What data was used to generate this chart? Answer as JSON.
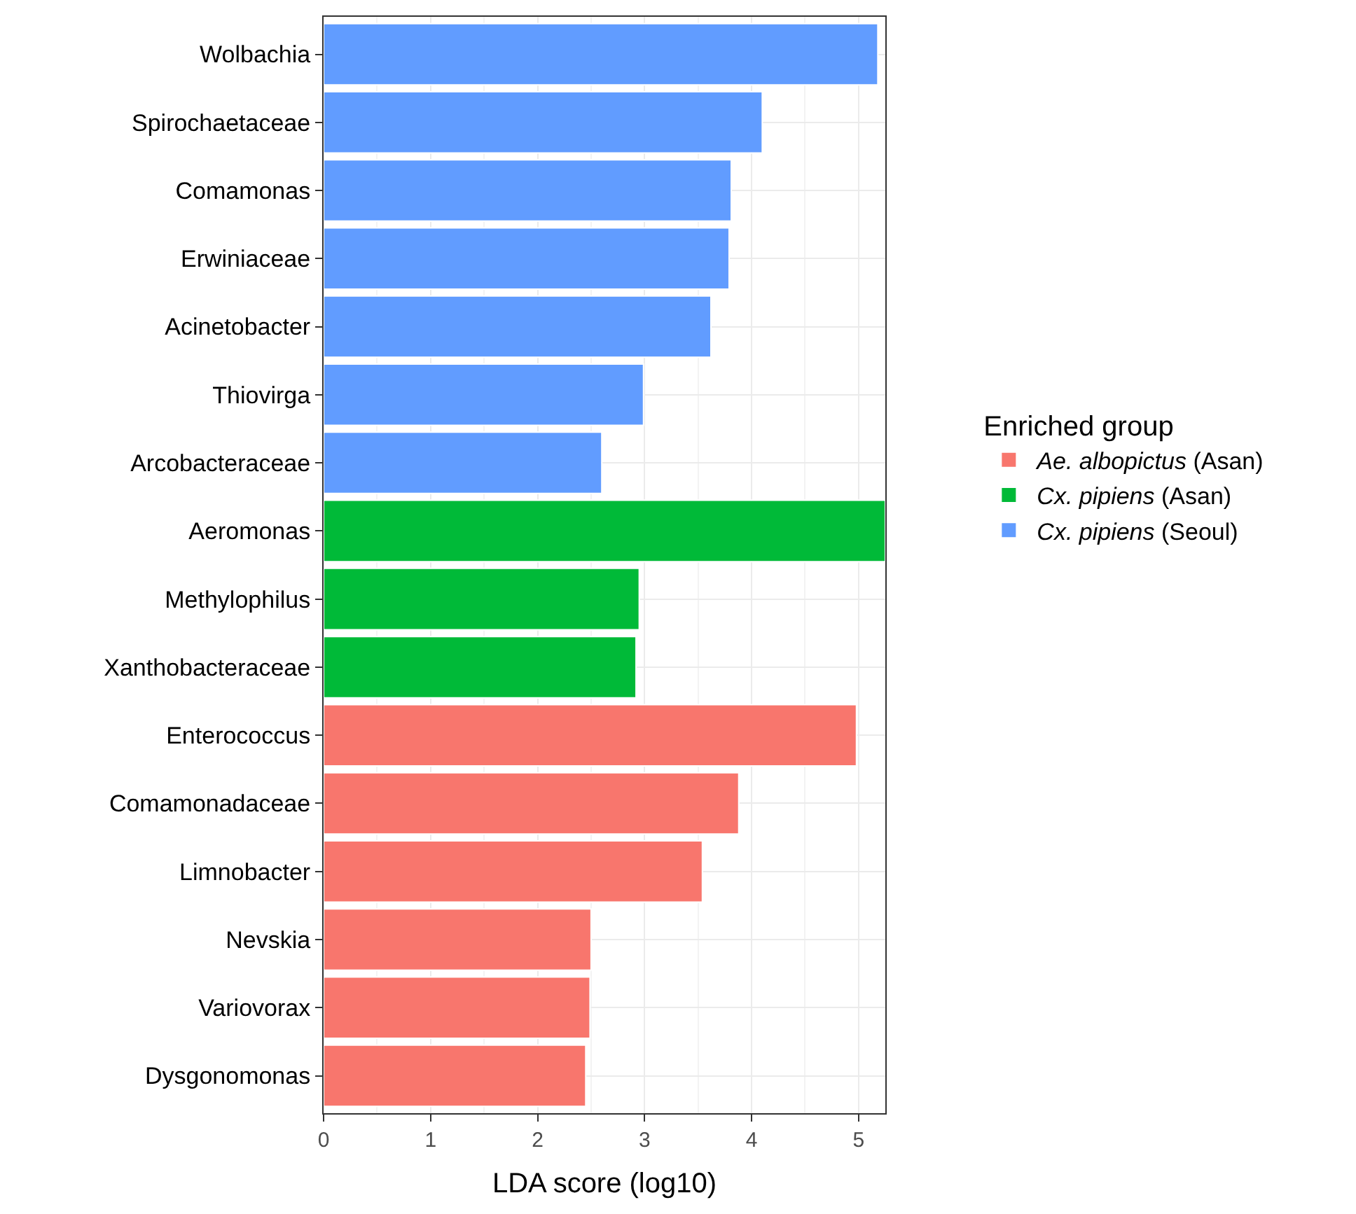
{
  "chart_data": {
    "type": "bar",
    "orientation": "horizontal",
    "xlabel": "LDA score (log10)",
    "legend_title": "Enriched group",
    "legend": "right",
    "grid": true,
    "categories": [
      "Wolbachia",
      "Spirochaetaceae",
      "Comamonas",
      "Erwiniaceae",
      "Acinetobacter",
      "Thiovirga",
      "Arcobacteraceae",
      "Aeromonas",
      "Methylophilus",
      "Xanthobacteraceae",
      "Enterococcus",
      "Comamonadaceae",
      "Limnobacter",
      "Nevskia",
      "Variovorax",
      "Dysgonomonas"
    ],
    "series": [
      {
        "name": "Ae. albopictus (Asan)",
        "color": "#f8766d",
        "values": [
          null,
          null,
          null,
          null,
          null,
          null,
          null,
          null,
          null,
          null,
          4.98,
          3.88,
          3.54,
          2.5,
          2.49,
          2.45
        ]
      },
      {
        "name": "Cx. pipiens (Asan)",
        "color": "#00ba38",
        "values": [
          null,
          null,
          null,
          null,
          null,
          null,
          null,
          5.25,
          2.95,
          2.92,
          null,
          null,
          null,
          null,
          null,
          null
        ]
      },
      {
        "name": "Cx. pipiens (Seoul)",
        "color": "#619cff",
        "values": [
          5.18,
          4.1,
          3.81,
          3.79,
          3.62,
          2.99,
          2.6,
          null,
          null,
          null,
          null,
          null,
          null,
          null,
          null,
          null
        ]
      }
    ],
    "xlim": [
      0,
      5.25
    ],
    "xticks": [
      0,
      1,
      2,
      3,
      4,
      5
    ]
  }
}
